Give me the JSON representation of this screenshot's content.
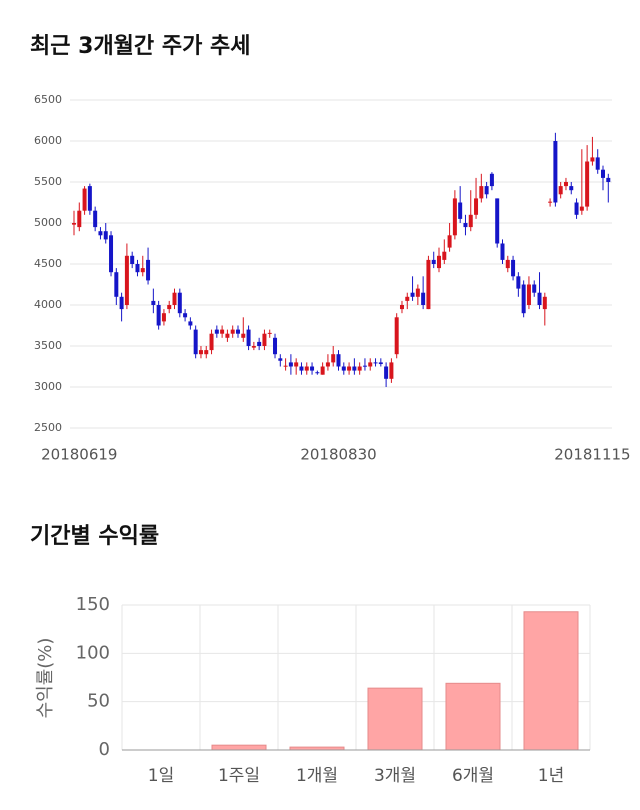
{
  "chart_data": [
    {
      "type": "candlestick",
      "title": "최근 3개월간 주가 추세",
      "categories": [
        null,
        "20180619",
        null,
        null,
        null,
        null,
        null,
        null,
        null,
        null,
        null,
        null,
        null,
        null,
        null,
        null,
        null,
        null,
        null,
        null,
        null,
        null,
        null,
        null,
        null,
        null,
        null,
        null,
        null,
        null,
        null,
        null,
        null,
        null,
        null,
        null,
        null,
        null,
        null,
        null,
        null,
        null,
        null,
        null,
        null,
        null,
        null,
        null,
        null,
        null,
        "20180830",
        null,
        null,
        null,
        null,
        null,
        null,
        null,
        null,
        null,
        null,
        null,
        null,
        null,
        null,
        null,
        null,
        null,
        null,
        null,
        null,
        null,
        null,
        null,
        null,
        null,
        null,
        null,
        null,
        null,
        null,
        null,
        null,
        null,
        null,
        null,
        null,
        null,
        null,
        null,
        null,
        null,
        null,
        null,
        null,
        null,
        null,
        null,
        "20181115",
        null,
        null,
        null
      ],
      "open": [
        4980,
        4950,
        5150,
        5450,
        5150,
        4900,
        4900,
        4850,
        4400,
        4100,
        4000,
        4600,
        4500,
        4400,
        4550,
        4050,
        4000,
        3800,
        3950,
        4000,
        4150,
        3900,
        3800,
        3700,
        3400,
        3400,
        3450,
        3700,
        3650,
        3600,
        3650,
        3700,
        3600,
        3700,
        3480,
        3550,
        3500,
        3650,
        3600,
        3350,
        3250,
        3300,
        3250,
        3250,
        3200,
        3250,
        3180,
        3150,
        3250,
        3300,
        3400,
        3250,
        3200,
        3250,
        3200,
        3260,
        3250,
        3300,
        3300,
        3250,
        3100,
        3400,
        3950,
        4050,
        4150,
        4100,
        4150,
        3950,
        4550,
        4450,
        4550,
        4700,
        4850,
        5250,
        5000,
        4950,
        5100,
        5300,
        5450,
        5600,
        5300,
        4750,
        4450,
        4550,
        4350,
        4250,
        4000,
        4250,
        4150,
        3950,
        5250,
        6000,
        5350,
        5450,
        5450,
        5250,
        5150,
        5200,
        5750,
        5800,
        5650,
        5550
      ],
      "high": [
        5150,
        5250,
        5450,
        5480,
        5200,
        4950,
        5000,
        4900,
        4450,
        4150,
        4750,
        4650,
        4550,
        4600,
        4700,
        4200,
        4050,
        3950,
        4050,
        4200,
        4200,
        3950,
        3850,
        3750,
        3500,
        3500,
        3700,
        3750,
        3750,
        3700,
        3750,
        3750,
        3850,
        3750,
        3550,
        3600,
        3700,
        3700,
        3650,
        3400,
        3350,
        3400,
        3350,
        3300,
        3300,
        3300,
        3200,
        3300,
        3400,
        3500,
        3450,
        3300,
        3300,
        3350,
        3300,
        3350,
        3350,
        3350,
        3350,
        3300,
        3350,
        3900,
        4050,
        4150,
        4350,
        4250,
        4350,
        4600,
        4650,
        4700,
        4800,
        5000,
        5400,
        5450,
        5100,
        5400,
        5550,
        5600,
        5500,
        5620,
        5300,
        4800,
        4600,
        4600,
        4400,
        4300,
        4350,
        4300,
        4400,
        4150,
        5300,
        6100,
        5500,
        5550,
        5500,
        5300,
        5900,
        5950,
        6050,
        5900,
        5700,
        5600
      ],
      "low": [
        4850,
        4900,
        5100,
        5100,
        4900,
        4800,
        4750,
        4350,
        4000,
        3800,
        3950,
        4450,
        4350,
        4350,
        4250,
        3900,
        3700,
        3750,
        3900,
        3950,
        3850,
        3800,
        3700,
        3350,
        3350,
        3350,
        3400,
        3600,
        3600,
        3550,
        3600,
        3600,
        3550,
        3450,
        3450,
        3450,
        3450,
        3600,
        3350,
        3250,
        3200,
        3150,
        3150,
        3150,
        3150,
        3150,
        3150,
        3150,
        3200,
        3250,
        3200,
        3150,
        3150,
        3150,
        3150,
        3200,
        3200,
        3250,
        3250,
        3000,
        3050,
        3350,
        3900,
        3950,
        4050,
        4000,
        3950,
        3950,
        4450,
        4400,
        4500,
        4650,
        4800,
        5000,
        4850,
        4900,
        5050,
        5250,
        5300,
        5400,
        4700,
        4500,
        4400,
        4300,
        4100,
        3850,
        3950,
        4100,
        3950,
        3750,
        5200,
        5200,
        5300,
        5400,
        5350,
        5050,
        5100,
        5150,
        5700,
        5600,
        5400,
        5250
      ],
      "close": [
        5000,
        5150,
        5420,
        5150,
        4950,
        4850,
        4800,
        4400,
        4100,
        3950,
        4600,
        4500,
        4400,
        4450,
        4300,
        4000,
        3750,
        3900,
        4000,
        4150,
        3900,
        3850,
        3750,
        3400,
        3450,
        3450,
        3650,
        3650,
        3700,
        3650,
        3700,
        3650,
        3650,
        3500,
        3500,
        3500,
        3650,
        3660,
        3400,
        3320,
        3260,
        3250,
        3300,
        3200,
        3250,
        3200,
        3170,
        3250,
        3300,
        3400,
        3250,
        3200,
        3250,
        3200,
        3250,
        3250,
        3300,
        3290,
        3280,
        3100,
        3300,
        3850,
        4000,
        4100,
        4100,
        4200,
        4000,
        4550,
        4500,
        4600,
        4650,
        4850,
        5300,
        5050,
        4950,
        5100,
        5300,
        5450,
        5350,
        5450,
        4750,
        4550,
        4550,
        4350,
        4200,
        3900,
        4250,
        4150,
        4000,
        4100,
        5260,
        5250,
        5450,
        5500,
        5400,
        5100,
        5200,
        5750,
        5800,
        5650,
        5550,
        5500
      ],
      "up_color": "#d8151d",
      "down_color": "#1515c8",
      "ylim": [
        2500,
        6500
      ],
      "yticks": [
        2500,
        3000,
        3500,
        4000,
        4500,
        5000,
        5500,
        6000,
        6500
      ],
      "grid": true
    },
    {
      "type": "bar",
      "title": "기간별 수익률",
      "ylabel": "수익률(%)",
      "categories": [
        "1일",
        "1주일",
        "1개월",
        "3개월",
        "6개월",
        "1년"
      ],
      "values": [
        0,
        5,
        3,
        64,
        69,
        143
      ],
      "color": "#ffa5a5",
      "edge_color": "#e58a8a",
      "ylim": [
        0,
        150
      ],
      "yticks": [
        0,
        50,
        100,
        150
      ],
      "grid": true
    }
  ]
}
